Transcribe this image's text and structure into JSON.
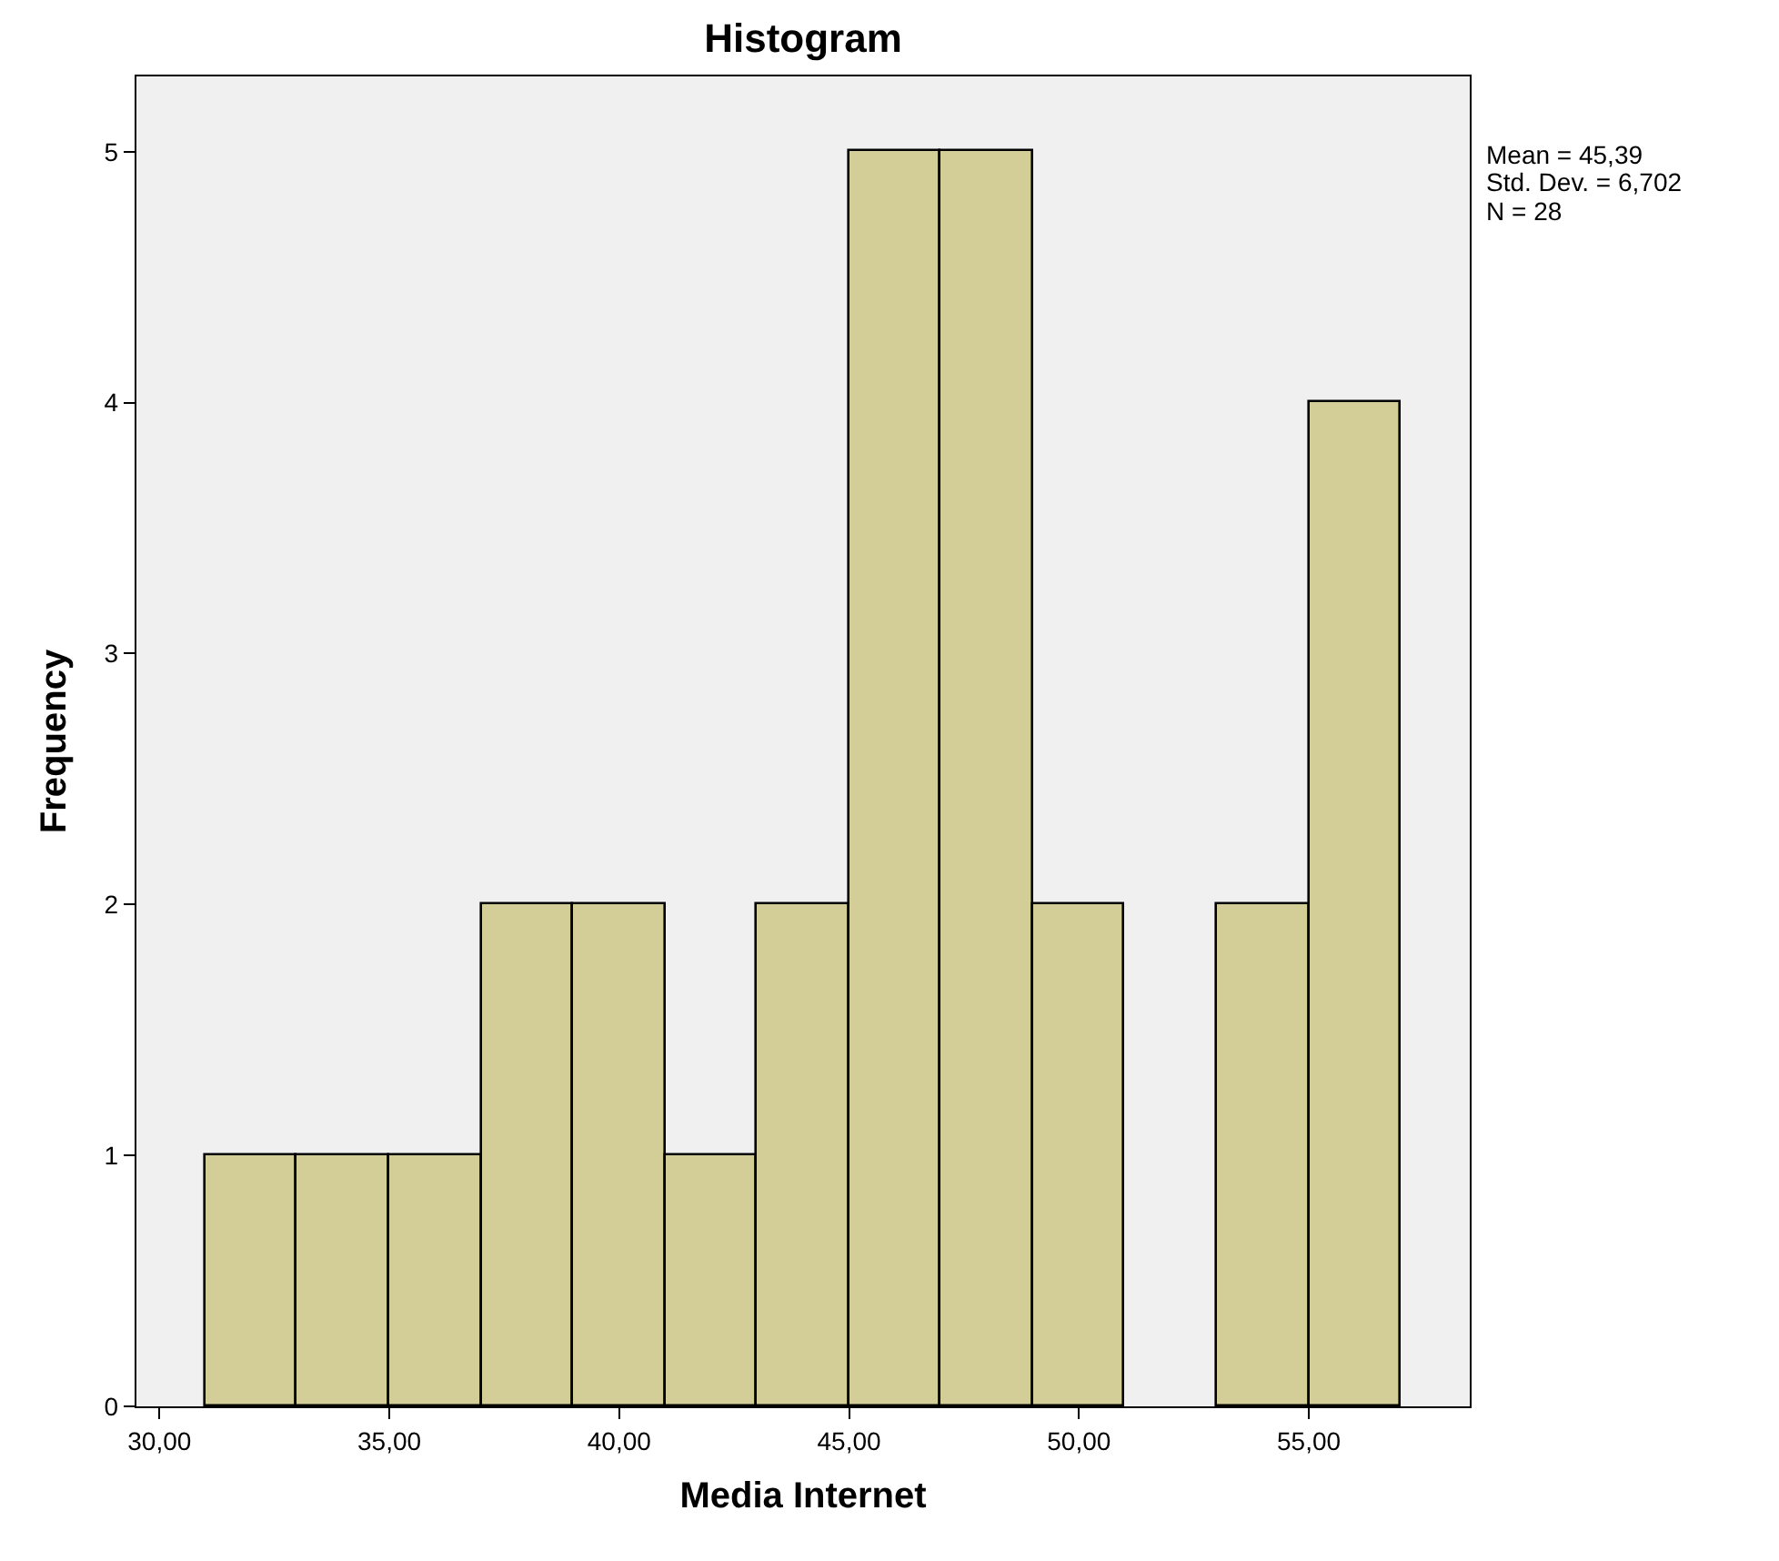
{
  "chart_data": {
    "type": "histogram",
    "title": "Histogram",
    "xlabel": "Media Internet",
    "ylabel": "Frequency",
    "bins": [
      31,
      33,
      35,
      37,
      39,
      41,
      43,
      45,
      47,
      49,
      51,
      53,
      55,
      57
    ],
    "values": [
      1,
      1,
      1,
      2,
      2,
      1,
      2,
      5,
      5,
      2,
      0,
      2,
      4
    ],
    "color": "#d3ce97",
    "xlim": [
      29.5,
      58.5
    ],
    "ylim": [
      0,
      5.3
    ],
    "xticks": [
      {
        "value": 30,
        "label": "30,00"
      },
      {
        "value": 35,
        "label": "35,00"
      },
      {
        "value": 40,
        "label": "40,00"
      },
      {
        "value": 45,
        "label": "45,00"
      },
      {
        "value": 50,
        "label": "50,00"
      },
      {
        "value": 55,
        "label": "55,00"
      }
    ],
    "yticks": [
      0,
      1,
      2,
      3,
      4,
      5
    ],
    "annotations": [
      "Mean = 45,39",
      "Std. Dev. = 6,702",
      "N = 28"
    ]
  }
}
